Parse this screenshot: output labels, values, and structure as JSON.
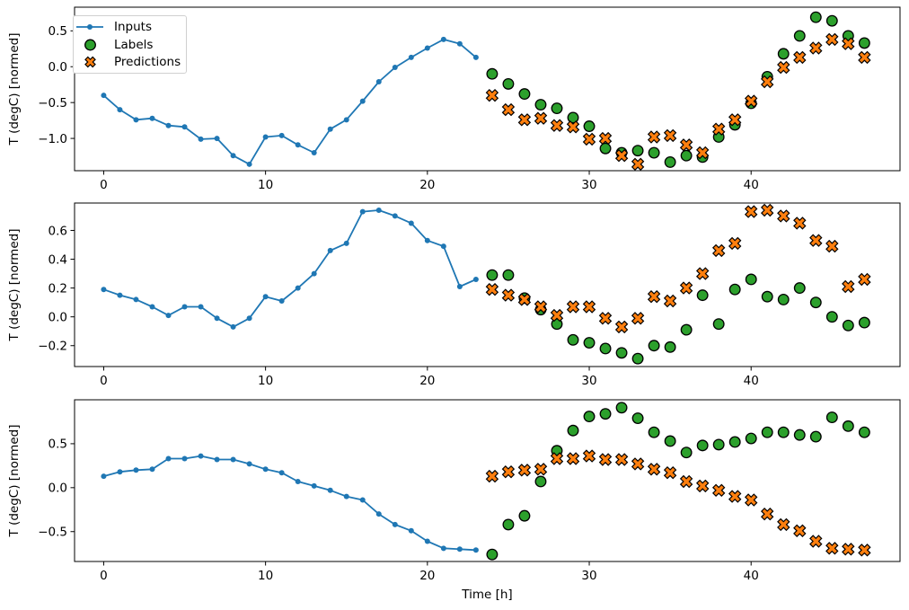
{
  "figure": {
    "background": "#ffffff",
    "xlabel": "Time [h]",
    "ylabel": "T (degC) [normed]",
    "colors": {
      "inputs": "#1f77b4",
      "labels": "#2ca02c",
      "predictions": "#ff7f0e",
      "marker_edge": "#000000",
      "axis": "#000000",
      "legend_border": "#d0d0d0"
    },
    "legend": {
      "position": "upper left of first subplot",
      "items": [
        {
          "label": "Inputs",
          "marker": "line-dot",
          "color": "#1f77b4"
        },
        {
          "label": "Labels",
          "marker": "circle",
          "color": "#2ca02c"
        },
        {
          "label": "Predictions",
          "marker": "x-cross",
          "color": "#ff7f0e"
        }
      ]
    }
  },
  "chart_data": [
    {
      "type": "line+scatter",
      "subplot": 1,
      "title": "",
      "xlabel": "",
      "ylabel": "T (degC) [normed]",
      "grid": false,
      "xlim": [
        -1.8,
        49.2
      ],
      "ylim": [
        -1.45,
        0.83
      ],
      "xticks": [
        {
          "value": 0,
          "label": "0"
        },
        {
          "value": 10,
          "label": "10"
        },
        {
          "value": 20,
          "label": "20"
        },
        {
          "value": 30,
          "label": "30"
        },
        {
          "value": 40,
          "label": "40"
        }
      ],
      "yticks": [
        {
          "value": 0.5,
          "label": "0.5"
        },
        {
          "value": 0.0,
          "label": "0.0"
        },
        {
          "value": -0.5,
          "label": "−0.5"
        },
        {
          "value": -1.0,
          "label": "−1.0"
        }
      ],
      "series": [
        {
          "name": "Inputs",
          "type": "line",
          "marker": "dot",
          "color": "#1f77b4",
          "x": [
            0,
            1,
            2,
            3,
            4,
            5,
            6,
            7,
            8,
            9,
            10,
            11,
            12,
            13,
            14,
            15,
            16,
            17,
            18,
            19,
            20,
            21,
            22,
            23
          ],
          "y": [
            -0.4,
            -0.6,
            -0.74,
            -0.72,
            -0.82,
            -0.84,
            -1.01,
            -1.0,
            -1.24,
            -1.36,
            -0.98,
            -0.96,
            -1.09,
            -1.2,
            -0.87,
            -0.74,
            -0.48,
            -0.21,
            -0.01,
            0.13,
            0.26,
            0.38,
            0.32,
            0.13
          ]
        },
        {
          "name": "Labels",
          "type": "scatter",
          "marker": "circle",
          "fill": "#2ca02c",
          "edge": "#000000",
          "x": [
            24,
            25,
            26,
            27,
            28,
            29,
            30,
            31,
            32,
            33,
            34,
            35,
            36,
            37,
            38,
            39,
            40,
            41,
            42,
            43,
            44,
            45,
            46,
            47
          ],
          "y": [
            -0.1,
            -0.24,
            -0.38,
            -0.53,
            -0.58,
            -0.71,
            -0.83,
            -1.14,
            -1.2,
            -1.17,
            -1.2,
            -1.33,
            -1.24,
            -1.26,
            -0.98,
            -0.81,
            -0.51,
            -0.14,
            0.18,
            0.43,
            0.69,
            0.64,
            0.43,
            0.33
          ]
        },
        {
          "name": "Predictions",
          "type": "scatter",
          "marker": "X",
          "fill": "#ff7f0e",
          "edge": "#000000",
          "x": [
            24,
            25,
            26,
            27,
            28,
            29,
            30,
            31,
            32,
            33,
            34,
            35,
            36,
            37,
            38,
            39,
            40,
            41,
            42,
            43,
            44,
            45,
            46,
            47
          ],
          "y": [
            -0.4,
            -0.6,
            -0.74,
            -0.72,
            -0.82,
            -0.84,
            -1.01,
            -1.0,
            -1.24,
            -1.36,
            -0.98,
            -0.96,
            -1.09,
            -1.2,
            -0.87,
            -0.74,
            -0.48,
            -0.21,
            -0.01,
            0.13,
            0.26,
            0.38,
            0.32,
            0.13
          ]
        }
      ]
    },
    {
      "type": "line+scatter",
      "subplot": 2,
      "title": "",
      "xlabel": "",
      "ylabel": "T (degC) [normed]",
      "grid": false,
      "xlim": [
        -1.8,
        49.2
      ],
      "ylim": [
        -0.345,
        0.79
      ],
      "xticks": [
        {
          "value": 0,
          "label": "0"
        },
        {
          "value": 10,
          "label": "10"
        },
        {
          "value": 20,
          "label": "20"
        },
        {
          "value": 30,
          "label": "30"
        },
        {
          "value": 40,
          "label": "40"
        }
      ],
      "yticks": [
        {
          "value": 0.6,
          "label": "0.6"
        },
        {
          "value": 0.4,
          "label": "0.4"
        },
        {
          "value": 0.2,
          "label": "0.2"
        },
        {
          "value": 0.0,
          "label": "0.0"
        },
        {
          "value": -0.2,
          "label": "−0.2"
        }
      ],
      "series": [
        {
          "name": "Inputs",
          "type": "line",
          "marker": "dot",
          "color": "#1f77b4",
          "x": [
            0,
            1,
            2,
            3,
            4,
            5,
            6,
            7,
            8,
            9,
            10,
            11,
            12,
            13,
            14,
            15,
            16,
            17,
            18,
            19,
            20,
            21,
            22,
            23
          ],
          "y": [
            0.19,
            0.15,
            0.12,
            0.07,
            0.01,
            0.07,
            0.07,
            -0.01,
            -0.07,
            -0.01,
            0.14,
            0.11,
            0.2,
            0.3,
            0.46,
            0.51,
            0.73,
            0.74,
            0.7,
            0.65,
            0.53,
            0.49,
            0.21,
            0.26
          ]
        },
        {
          "name": "Labels",
          "type": "scatter",
          "marker": "circle",
          "fill": "#2ca02c",
          "edge": "#000000",
          "x": [
            24,
            25,
            26,
            27,
            28,
            29,
            30,
            31,
            32,
            33,
            34,
            35,
            36,
            37,
            38,
            39,
            40,
            41,
            42,
            43,
            44,
            45,
            46,
            47
          ],
          "y": [
            0.29,
            0.29,
            0.13,
            0.05,
            -0.05,
            -0.16,
            -0.18,
            -0.22,
            -0.25,
            -0.29,
            -0.2,
            -0.21,
            -0.09,
            0.15,
            -0.05,
            0.19,
            0.26,
            0.14,
            0.12,
            0.2,
            0.1,
            0.0,
            -0.06,
            -0.04
          ]
        },
        {
          "name": "Predictions",
          "type": "scatter",
          "marker": "X",
          "fill": "#ff7f0e",
          "edge": "#000000",
          "x": [
            24,
            25,
            26,
            27,
            28,
            29,
            30,
            31,
            32,
            33,
            34,
            35,
            36,
            37,
            38,
            39,
            40,
            41,
            42,
            43,
            44,
            45,
            46,
            47
          ],
          "y": [
            0.19,
            0.15,
            0.12,
            0.07,
            0.01,
            0.07,
            0.07,
            -0.01,
            -0.07,
            -0.01,
            0.14,
            0.11,
            0.2,
            0.3,
            0.46,
            0.51,
            0.73,
            0.74,
            0.7,
            0.65,
            0.53,
            0.49,
            0.21,
            0.26
          ]
        }
      ]
    },
    {
      "type": "line+scatter",
      "subplot": 3,
      "title": "",
      "xlabel": "Time [h]",
      "ylabel": "T (degC) [normed]",
      "grid": false,
      "xlim": [
        -1.8,
        49.2
      ],
      "ylim": [
        -0.84,
        1.0
      ],
      "xticks": [
        {
          "value": 0,
          "label": "0"
        },
        {
          "value": 10,
          "label": "10"
        },
        {
          "value": 20,
          "label": "20"
        },
        {
          "value": 30,
          "label": "30"
        },
        {
          "value": 40,
          "label": "40"
        }
      ],
      "yticks": [
        {
          "value": 0.5,
          "label": "0.5"
        },
        {
          "value": 0.0,
          "label": "0.0"
        },
        {
          "value": -0.5,
          "label": "−0.5"
        }
      ],
      "series": [
        {
          "name": "Inputs",
          "type": "line",
          "marker": "dot",
          "color": "#1f77b4",
          "x": [
            0,
            1,
            2,
            3,
            4,
            5,
            6,
            7,
            8,
            9,
            10,
            11,
            12,
            13,
            14,
            15,
            16,
            17,
            18,
            19,
            20,
            21,
            22,
            23
          ],
          "y": [
            0.13,
            0.18,
            0.2,
            0.21,
            0.33,
            0.33,
            0.36,
            0.32,
            0.32,
            0.27,
            0.21,
            0.17,
            0.07,
            0.02,
            -0.03,
            -0.1,
            -0.14,
            -0.3,
            -0.42,
            -0.49,
            -0.61,
            -0.69,
            -0.7,
            -0.71
          ]
        },
        {
          "name": "Labels",
          "type": "scatter",
          "marker": "circle",
          "fill": "#2ca02c",
          "edge": "#000000",
          "x": [
            24,
            25,
            26,
            27,
            28,
            29,
            30,
            31,
            32,
            33,
            34,
            35,
            36,
            37,
            38,
            39,
            40,
            41,
            42,
            43,
            44,
            45,
            46,
            47
          ],
          "y": [
            -0.76,
            -0.42,
            -0.32,
            0.07,
            0.42,
            0.65,
            0.81,
            0.84,
            0.91,
            0.79,
            0.63,
            0.53,
            0.4,
            0.48,
            0.49,
            0.52,
            0.56,
            0.63,
            0.63,
            0.6,
            0.58,
            0.8,
            0.7,
            0.63
          ]
        },
        {
          "name": "Predictions",
          "type": "scatter",
          "marker": "X",
          "fill": "#ff7f0e",
          "edge": "#000000",
          "x": [
            24,
            25,
            26,
            27,
            28,
            29,
            30,
            31,
            32,
            33,
            34,
            35,
            36,
            37,
            38,
            39,
            40,
            41,
            42,
            43,
            44,
            45,
            46,
            47
          ],
          "y": [
            0.13,
            0.18,
            0.2,
            0.21,
            0.33,
            0.33,
            0.36,
            0.32,
            0.32,
            0.27,
            0.21,
            0.17,
            0.07,
            0.02,
            -0.03,
            -0.1,
            -0.14,
            -0.3,
            -0.42,
            -0.49,
            -0.61,
            -0.69,
            -0.7,
            -0.71
          ]
        }
      ]
    }
  ]
}
